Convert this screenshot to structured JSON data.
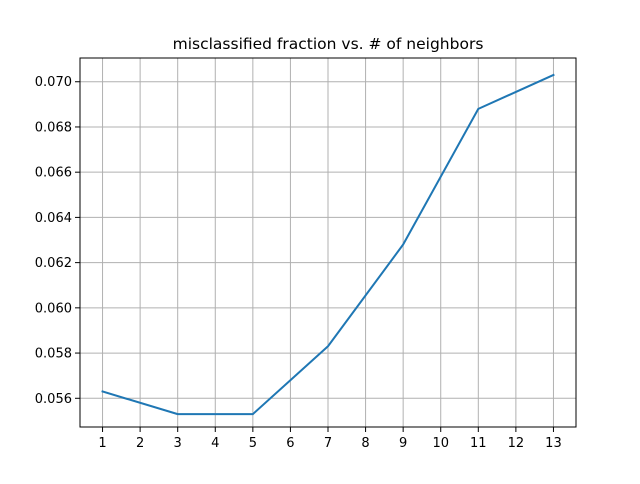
{
  "chart_data": {
    "type": "line",
    "title": "misclassified fraction vs. # of neighbors",
    "xlabel": "",
    "ylabel": "",
    "x": [
      1,
      3,
      5,
      7,
      9,
      11,
      13
    ],
    "series": [
      {
        "values": [
          0.0563,
          0.0553,
          0.0553,
          0.0583,
          0.0628,
          0.0688,
          0.0703
        ],
        "color": "#1f77b4"
      }
    ],
    "xlim": [
      0.4,
      13.6
    ],
    "ylim": [
      0.05473,
      0.07105
    ],
    "xticks": [
      1,
      2,
      3,
      4,
      5,
      6,
      7,
      8,
      9,
      10,
      11,
      12,
      13
    ],
    "xtick_labels": [
      "1",
      "2",
      "3",
      "4",
      "5",
      "6",
      "7",
      "8",
      "9",
      "10",
      "11",
      "12",
      "13"
    ],
    "yticks": [
      0.056,
      0.058,
      0.06,
      0.062,
      0.064,
      0.066,
      0.068,
      0.07
    ],
    "ytick_labels": [
      "0.056",
      "0.058",
      "0.060",
      "0.062",
      "0.064",
      "0.066",
      "0.068",
      "0.070"
    ],
    "grid": true,
    "colors": {
      "line": "#1f77b4",
      "grid": "#b0b0b0",
      "axes": "#000000",
      "background": "#ffffff"
    }
  }
}
